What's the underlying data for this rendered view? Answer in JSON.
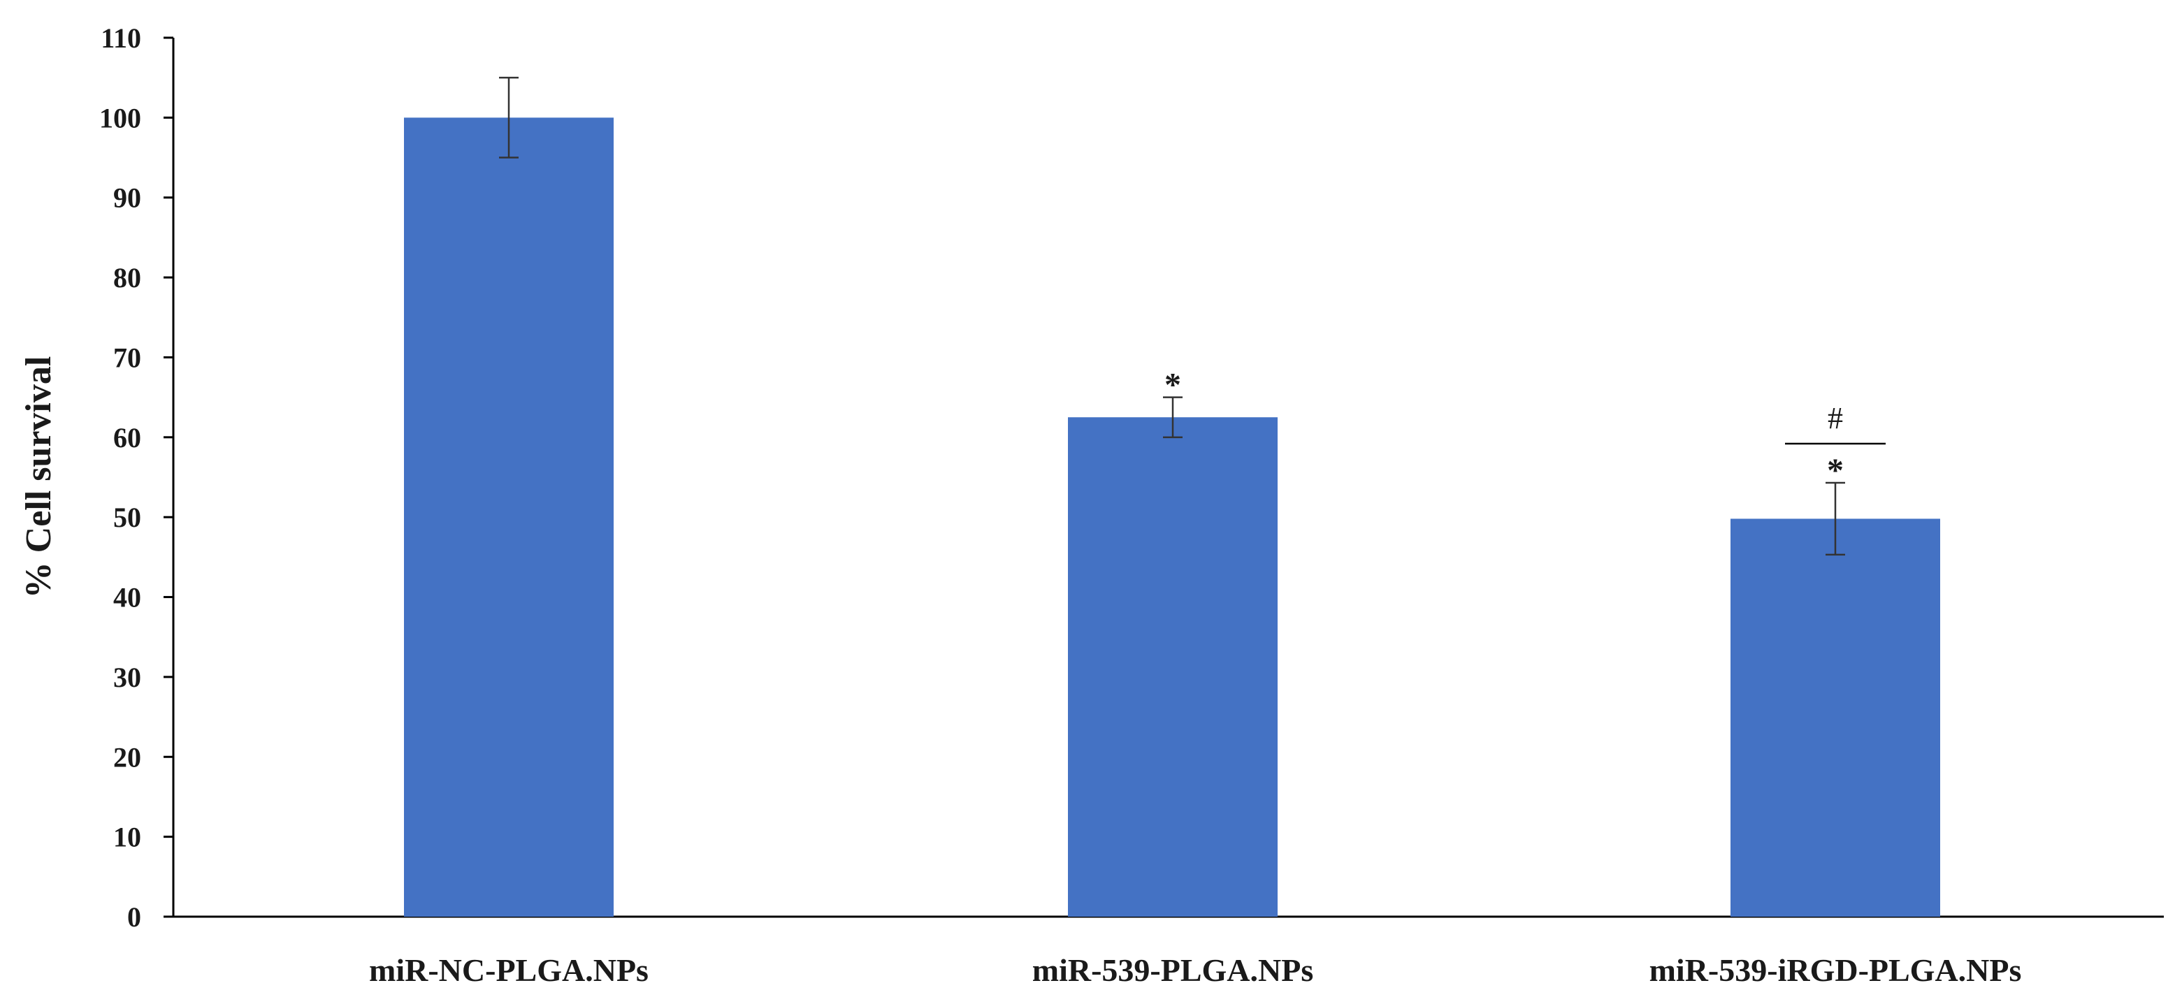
{
  "chart_data": {
    "type": "bar",
    "title": "",
    "xlabel": "",
    "ylabel": "% Cell survival",
    "ylim": [
      0,
      110
    ],
    "y_ticks": [
      "0",
      "10",
      "20",
      "30",
      "40",
      "50",
      "60",
      "70",
      "80",
      "90",
      "100",
      "110"
    ],
    "grid": false,
    "legend": "none",
    "categories": [
      "miR-NC-PLGA.NPs",
      "miR-539-PLGA.NPs",
      "miR-539-iRGD-PLGA.NPs"
    ],
    "values": [
      100,
      62.5,
      49.8
    ],
    "error": [
      5,
      2.5,
      4.5
    ],
    "bar_color": "#4472C4",
    "annotations": [
      {
        "category": "miR-539-PLGA.NPs",
        "marks": [
          "*"
        ]
      },
      {
        "category": "miR-539-iRGD-PLGA.NPs",
        "marks": [
          "*",
          "#"
        ]
      }
    ]
  }
}
